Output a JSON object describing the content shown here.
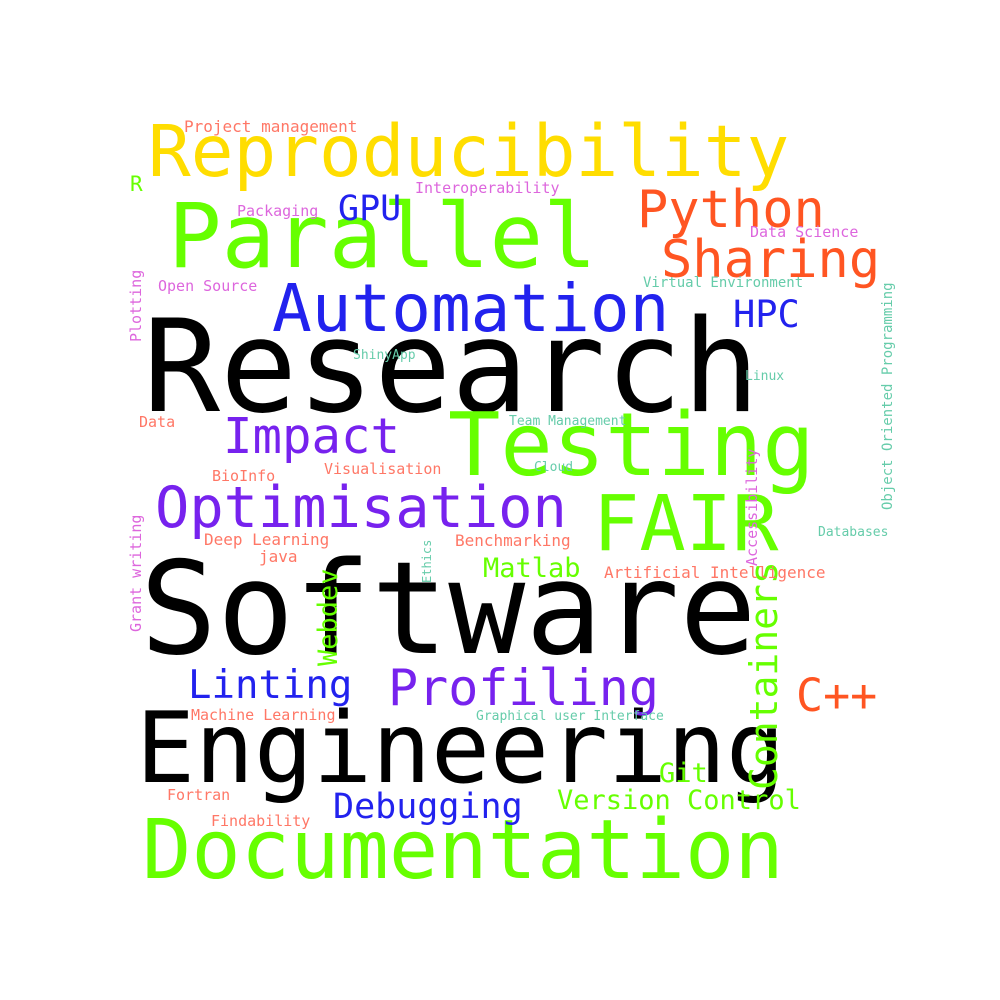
{
  "colors": {
    "black": "#000000",
    "green": "#66ff00",
    "yellow": "#ffdd00",
    "orange": "#ff5522",
    "blue": "#2222ee",
    "purple": "#7722ee",
    "salmon": "#ff7766",
    "pink": "#dd66dd",
    "teal": "#66ccaa"
  },
  "words": [
    "Research",
    "Software",
    "Engineering",
    "Documentation",
    "Reproducibility",
    "Parallel",
    "Testing",
    "FAIR",
    "Automation",
    "Optimisation",
    "Python",
    "Sharing",
    "Impact",
    "Profiling",
    "Linting",
    "Debugging",
    "C++",
    "Containers",
    "Version Control",
    "GPU",
    "HPC",
    "Matlab",
    "Webdev",
    "Git",
    "Project management",
    "Interoperability",
    "Packaging",
    "Data Science",
    "Open Source",
    "Virtual Environment",
    "Plotting",
    "ShinyApp",
    "Linux",
    "Object Oriented Programming",
    "Team Management",
    "Data",
    "Accessibility",
    "BioInfo",
    "Visualisation",
    "Cloud",
    "Deep Learning",
    "Benchmarking",
    "Databases",
    "java",
    "Ethics",
    "Artificial Intelligence",
    "Grant writing",
    "Machine Learning",
    "Graphical user Interface",
    "Fortran",
    "Findability",
    "R"
  ]
}
